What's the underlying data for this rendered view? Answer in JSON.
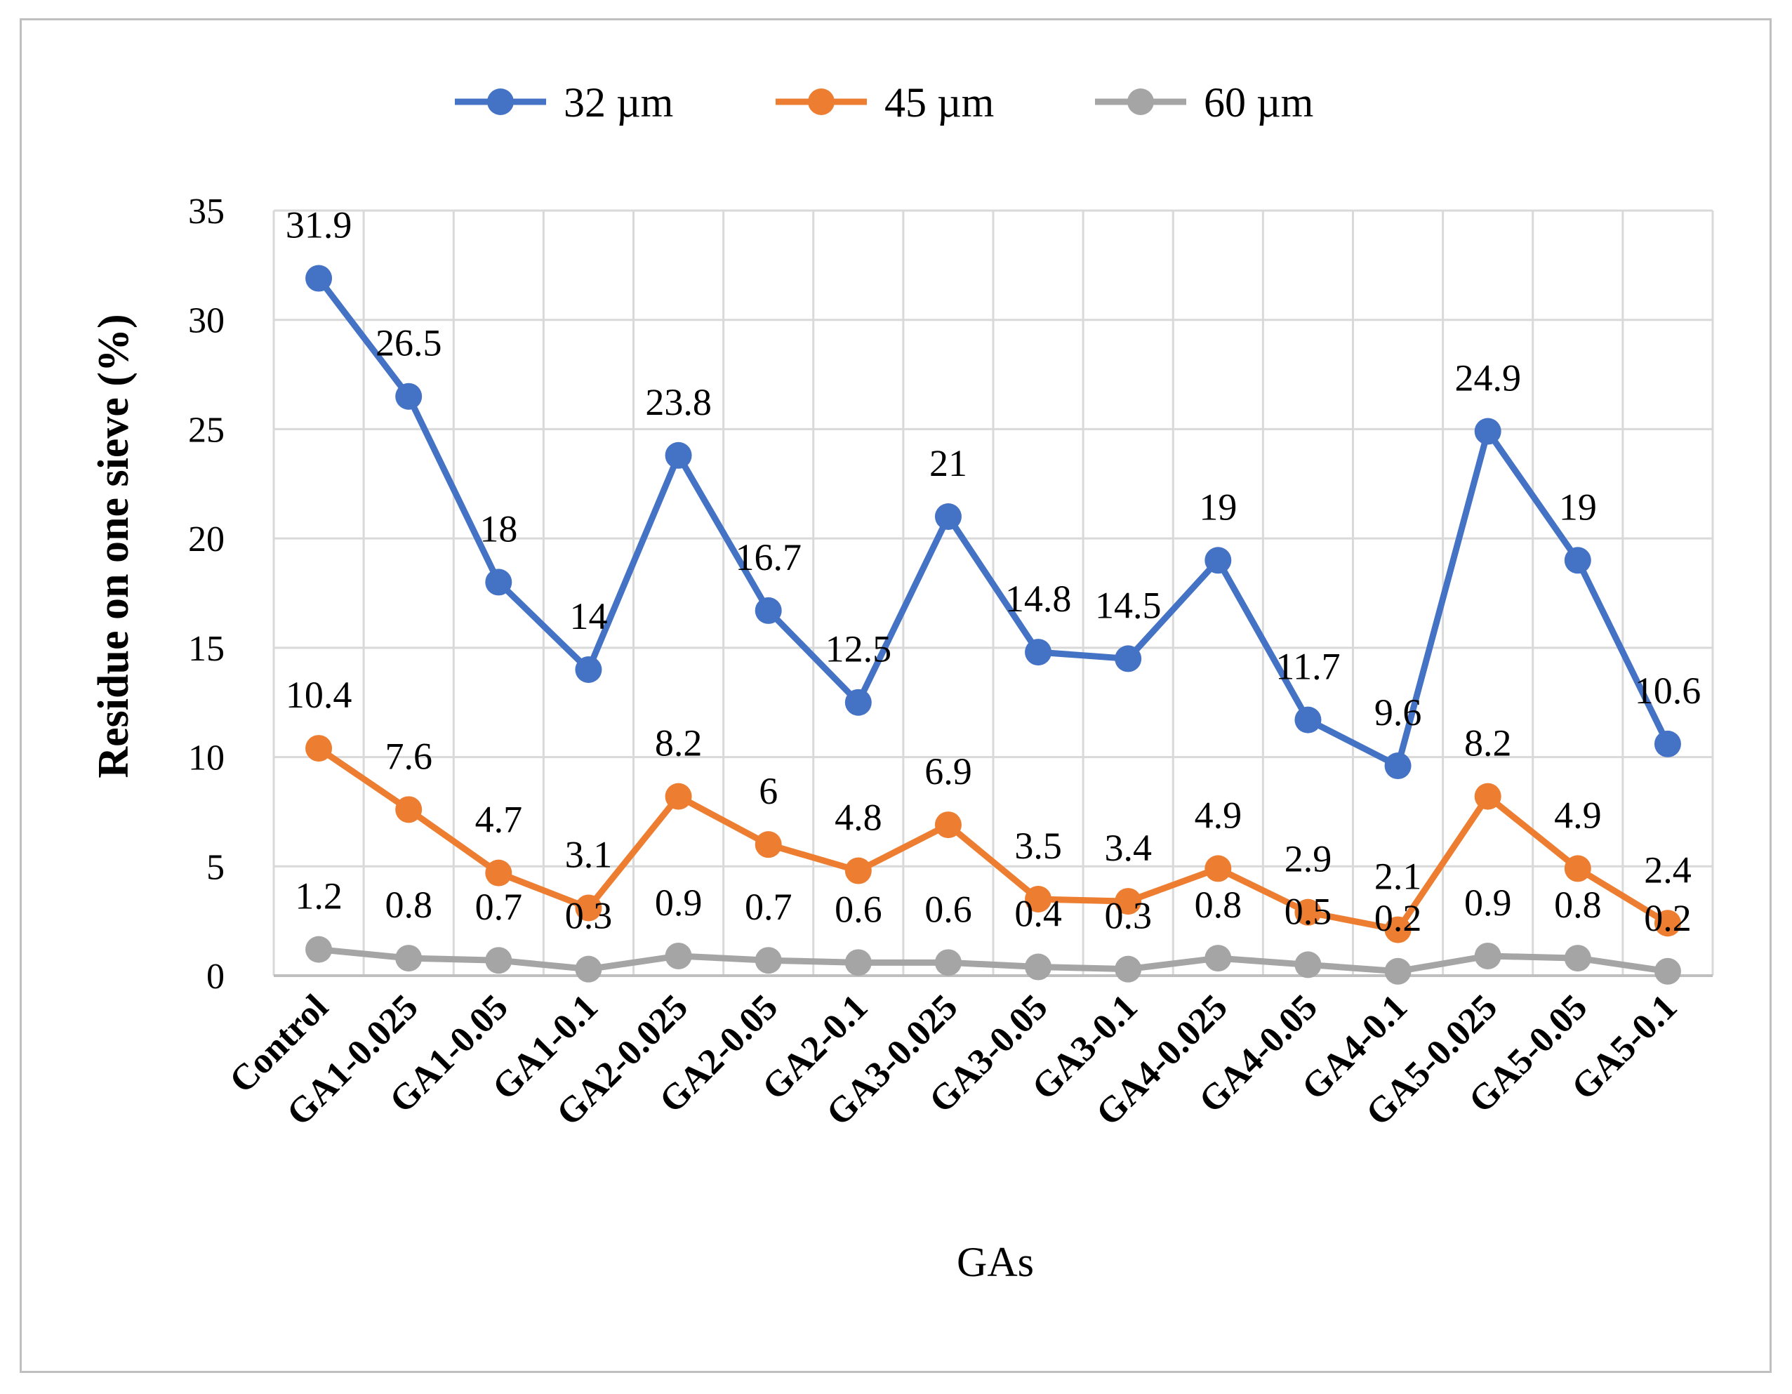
{
  "chart_data": {
    "type": "line",
    "title": "",
    "xlabel": "GAs",
    "ylabel": "Residue on one sieve (%)",
    "ylim": [
      0,
      35
    ],
    "ytick_step": 5,
    "grid": true,
    "legend_position": "top",
    "categories": [
      "Control",
      "GA1-0.025",
      "GA1-0.05",
      "GA1-0.1",
      "GA2-0.025",
      "GA2-0.05",
      "GA2-0.1",
      "GA3-0.025",
      "GA3-0.05",
      "GA3-0.1",
      "GA4-0.025",
      "GA4-0.05",
      "GA4-0.1",
      "GA5-0.025",
      "GA5-0.05",
      "GA5-0.1"
    ],
    "series": [
      {
        "name": "32 µm",
        "color": "#4472C4",
        "values": [
          31.9,
          26.5,
          18,
          14,
          23.8,
          16.7,
          12.5,
          21,
          14.8,
          14.5,
          19,
          11.7,
          9.6,
          24.9,
          19,
          10.6
        ]
      },
      {
        "name": "45 µm",
        "color": "#ED7D31",
        "values": [
          10.4,
          7.6,
          4.7,
          3.1,
          8.2,
          6,
          4.8,
          6.9,
          3.5,
          3.4,
          4.9,
          2.9,
          2.1,
          8.2,
          4.9,
          2.4
        ]
      },
      {
        "name": "60 µm",
        "color": "#A5A5A5",
        "values": [
          1.2,
          0.8,
          0.7,
          0.3,
          0.9,
          0.7,
          0.6,
          0.6,
          0.4,
          0.3,
          0.8,
          0.5,
          0.2,
          0.9,
          0.8,
          0.2
        ]
      }
    ]
  }
}
